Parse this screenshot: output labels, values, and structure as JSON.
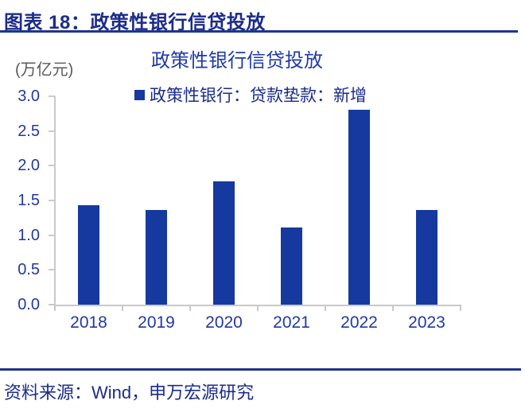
{
  "header": {
    "title": "图表 18：政策性银行信贷投放"
  },
  "source": {
    "text": "资料来源：Wind，申万宏源研究"
  },
  "colors": {
    "accent_navy": "#1B2C8A",
    "rule_blue": "#1F3490",
    "bar_blue": "#16399F",
    "tick_label_blue": "#2238A3",
    "axis_gray": "#C9C9C9",
    "unit_gray": "#595959"
  },
  "chart_data": {
    "type": "bar",
    "title": "政策性银行信贷投放",
    "unit_label": "(万亿元)",
    "xlabel": "",
    "ylabel": "万亿元",
    "categories": [
      "2018",
      "2019",
      "2020",
      "2021",
      "2022",
      "2023"
    ],
    "values": [
      1.43,
      1.36,
      1.78,
      1.11,
      2.8,
      1.36
    ],
    "ylim": [
      0,
      3.0
    ],
    "yticks": [
      0.0,
      0.5,
      1.0,
      1.5,
      2.0,
      2.5,
      3.0
    ],
    "grid": false,
    "legend_position": "top-center",
    "bar_color": "#16399F",
    "legend": [
      {
        "label": "政策性银行：贷款垫款：新增",
        "color": "#16399F"
      }
    ]
  }
}
